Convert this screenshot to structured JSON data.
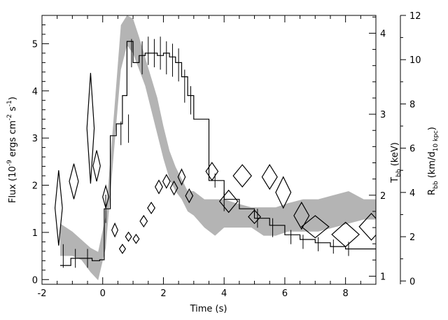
{
  "chart_data": {
    "type": "line",
    "xlabel": "Time (s)",
    "ylabel_left": "Flux (10^-9 ergs cm^-2 s^-1)",
    "ylabel_left_parts": {
      "pre": "Flux (10",
      "sup1": "-9",
      "mid": " ergs cm",
      "sup2": "-2",
      "mid2": " s",
      "sup3": "-1",
      "post": ")"
    },
    "ylabel_t": {
      "pre": "T",
      "sub": "bb",
      "post": " (keV)"
    },
    "ylabel_r": {
      "pre": "R",
      "sub": "bb",
      "mid": " (km/d",
      "sub2": "10 kpc",
      "post": ")"
    },
    "xlim": [
      -2,
      9
    ],
    "ylim_left": [
      -0.1,
      5.6
    ],
    "ylim_t": [
      0.9,
      4.22
    ],
    "ylim_r": [
      -0.15,
      12.0
    ],
    "xticks": [
      -2,
      0,
      2,
      4,
      6,
      8
    ],
    "yticks_left": [
      0,
      1,
      2,
      3,
      4,
      5
    ],
    "yticks_t": [
      1,
      2,
      3,
      4
    ],
    "yticks_r": [
      0,
      2,
      4,
      6,
      8,
      10,
      12
    ],
    "grid": false,
    "flux_step": {
      "bins_x": [
        -1.4,
        -1.05,
        -0.7,
        -0.35,
        -0.1,
        0.05,
        0.25,
        0.45,
        0.65,
        0.8,
        1.0,
        1.2,
        1.4,
        1.6,
        1.8,
        2.0,
        2.2,
        2.4,
        2.6,
        2.8,
        3.0,
        3.2,
        3.5,
        4.0,
        4.5,
        5.0,
        5.5,
        6.0,
        6.5,
        7.0,
        7.5,
        8.0,
        8.5,
        9.0
      ],
      "values": [
        0.3,
        0.45,
        0.45,
        0.4,
        0.42,
        1.5,
        3.05,
        3.3,
        3.9,
        5.05,
        4.6,
        4.75,
        4.8,
        4.8,
        4.75,
        4.8,
        4.72,
        4.6,
        4.3,
        3.9,
        3.4,
        3.4,
        2.1,
        1.7,
        1.5,
        1.3,
        1.15,
        0.95,
        0.85,
        0.78,
        0.7,
        0.65,
        0.65
      ]
    },
    "flux_errorbars": [
      {
        "x": -1.3,
        "y": 0.5,
        "err": 0.25
      },
      {
        "x": -0.9,
        "y": 0.45,
        "err": 0.2
      },
      {
        "x": -0.5,
        "y": 0.45,
        "err": 0.2
      },
      {
        "x": 0.1,
        "y": 1.5,
        "err": 0.3
      },
      {
        "x": 0.6,
        "y": 3.1,
        "err": 0.25
      },
      {
        "x": 0.85,
        "y": 3.2,
        "err": 0.3
      },
      {
        "x": 0.95,
        "y": 4.8,
        "err": 0.3
      },
      {
        "x": 1.3,
        "y": 4.7,
        "err": 0.35
      },
      {
        "x": 1.5,
        "y": 4.85,
        "err": 0.3
      },
      {
        "x": 1.7,
        "y": 4.8,
        "err": 0.3
      },
      {
        "x": 1.9,
        "y": 4.8,
        "err": 0.35
      },
      {
        "x": 2.1,
        "y": 4.7,
        "err": 0.35
      },
      {
        "x": 2.3,
        "y": 4.65,
        "err": 0.35
      },
      {
        "x": 2.5,
        "y": 4.55,
        "err": 0.35
      },
      {
        "x": 2.7,
        "y": 4.1,
        "err": 0.35
      },
      {
        "x": 2.9,
        "y": 3.8,
        "err": 0.3
      },
      {
        "x": 3.7,
        "y": 2.1,
        "err": 0.15
      },
      {
        "x": 4.0,
        "y": 1.65,
        "err": 0.2
      },
      {
        "x": 5.1,
        "y": 1.3,
        "err": 0.2
      },
      {
        "x": 5.6,
        "y": 1.1,
        "err": 0.2
      },
      {
        "x": 6.2,
        "y": 0.9,
        "err": 0.15
      },
      {
        "x": 6.6,
        "y": 0.8,
        "err": 0.15
      },
      {
        "x": 7.1,
        "y": 0.75,
        "err": 0.15
      },
      {
        "x": 7.6,
        "y": 0.7,
        "err": 0.15
      },
      {
        "x": 8.1,
        "y": 0.65,
        "err": 0.15
      }
    ],
    "temperature_band": {
      "x": [
        -1.4,
        -1.0,
        -0.7,
        -0.4,
        -0.15,
        0.1,
        0.35,
        0.6,
        0.8,
        1.0,
        1.2,
        1.4,
        1.6,
        1.8,
        2.0,
        2.2,
        2.4,
        2.6,
        2.8,
        3.0,
        3.35,
        3.7,
        4.0,
        4.4,
        4.9,
        5.3,
        5.7,
        6.1,
        6.6,
        7.1,
        7.6,
        8.1,
        8.6,
        9.0
      ],
      "upper": [
        1.65,
        1.55,
        1.45,
        1.35,
        1.3,
        1.75,
        2.9,
        4.1,
        4.22,
        4.18,
        3.95,
        3.7,
        3.45,
        3.2,
        2.85,
        2.55,
        2.35,
        2.2,
        2.05,
        2.05,
        1.95,
        1.95,
        1.95,
        1.9,
        1.85,
        1.85,
        1.85,
        1.9,
        1.95,
        1.95,
        2.0,
        2.05,
        1.95,
        1.95
      ],
      "lower": [
        1.25,
        1.25,
        1.2,
        1.05,
        0.95,
        1.35,
        2.45,
        3.55,
        3.85,
        3.75,
        3.55,
        3.35,
        3.05,
        2.75,
        2.45,
        2.2,
        2.05,
        1.95,
        1.8,
        1.75,
        1.6,
        1.5,
        1.6,
        1.6,
        1.6,
        1.5,
        1.5,
        1.55,
        1.55,
        1.55,
        1.6,
        1.65,
        1.7,
        1.7
      ]
    },
    "radius_diamonds": [
      {
        "x": -1.45,
        "y": 3.3,
        "dx": 0.12,
        "dy": 1.7
      },
      {
        "x": -0.95,
        "y": 4.5,
        "dx": 0.15,
        "dy": 0.8
      },
      {
        "x": -0.4,
        "y": 6.9,
        "dx": 0.12,
        "dy": 2.5
      },
      {
        "x": -0.2,
        "y": 5.2,
        "dx": 0.12,
        "dy": 0.7
      },
      {
        "x": 0.1,
        "y": 3.8,
        "dx": 0.1,
        "dy": 0.5
      },
      {
        "x": 0.4,
        "y": 2.3,
        "dx": 0.1,
        "dy": 0.3
      },
      {
        "x": 0.65,
        "y": 1.45,
        "dx": 0.1,
        "dy": 0.2
      },
      {
        "x": 0.85,
        "y": 2.0,
        "dx": 0.1,
        "dy": 0.2
      },
      {
        "x": 1.1,
        "y": 1.9,
        "dx": 0.1,
        "dy": 0.2
      },
      {
        "x": 1.35,
        "y": 2.7,
        "dx": 0.12,
        "dy": 0.25
      },
      {
        "x": 1.6,
        "y": 3.3,
        "dx": 0.12,
        "dy": 0.25
      },
      {
        "x": 1.85,
        "y": 4.25,
        "dx": 0.12,
        "dy": 0.3
      },
      {
        "x": 2.1,
        "y": 4.5,
        "dx": 0.12,
        "dy": 0.3
      },
      {
        "x": 2.35,
        "y": 4.2,
        "dx": 0.12,
        "dy": 0.3
      },
      {
        "x": 2.6,
        "y": 4.7,
        "dx": 0.12,
        "dy": 0.35
      },
      {
        "x": 2.85,
        "y": 3.85,
        "dx": 0.12,
        "dy": 0.3
      },
      {
        "x": 3.6,
        "y": 4.95,
        "dx": 0.2,
        "dy": 0.4
      },
      {
        "x": 4.15,
        "y": 3.6,
        "dx": 0.3,
        "dy": 0.5
      },
      {
        "x": 4.6,
        "y": 4.75,
        "dx": 0.3,
        "dy": 0.5
      },
      {
        "x": 5.0,
        "y": 2.9,
        "dx": 0.2,
        "dy": 0.3
      },
      {
        "x": 5.5,
        "y": 4.7,
        "dx": 0.25,
        "dy": 0.55
      },
      {
        "x": 5.95,
        "y": 4.0,
        "dx": 0.25,
        "dy": 0.7
      },
      {
        "x": 6.55,
        "y": 2.95,
        "dx": 0.25,
        "dy": 0.6
      },
      {
        "x": 7.0,
        "y": 2.45,
        "dx": 0.45,
        "dy": 0.5
      },
      {
        "x": 8.0,
        "y": 2.1,
        "dx": 0.45,
        "dy": 0.55
      },
      {
        "x": 8.85,
        "y": 2.45,
        "dx": 0.4,
        "dy": 0.6
      }
    ]
  }
}
